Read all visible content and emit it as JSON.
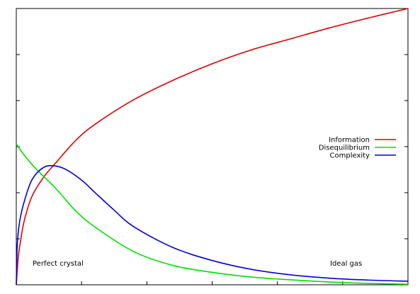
{
  "chart_data": {
    "type": "line",
    "title": "",
    "xlabel": "",
    "ylabel": "",
    "xlim": [
      0,
      1
    ],
    "ylim": [
      0,
      1
    ],
    "tick_labels": false,
    "grid": false,
    "legend_position": "center-right",
    "series": [
      {
        "name": "Information",
        "color": "#e00000",
        "x": [
          0,
          0.005,
          0.01,
          0.02,
          0.04,
          0.07,
          0.1,
          0.15,
          0.2,
          0.3,
          0.4,
          0.5,
          0.6,
          0.7,
          0.8,
          0.9,
          1.0
        ],
        "values": [
          0,
          0.1,
          0.15,
          0.23,
          0.32,
          0.39,
          0.44,
          0.52,
          0.58,
          0.67,
          0.74,
          0.8,
          0.85,
          0.89,
          0.93,
          0.966,
          1.0
        ]
      },
      {
        "name": "Disequilibrium",
        "color": "#00e000",
        "x": [
          0,
          0.02,
          0.05,
          0.1,
          0.15,
          0.2,
          0.3,
          0.4,
          0.5,
          0.6,
          0.7,
          0.8,
          0.9,
          1.0
        ],
        "values": [
          0.51,
          0.47,
          0.42,
          0.35,
          0.27,
          0.21,
          0.12,
          0.07,
          0.045,
          0.028,
          0.018,
          0.01,
          0.005,
          0.002
        ]
      },
      {
        "name": "Complexity",
        "color": "#0000e0",
        "x": [
          0,
          0.002,
          0.005,
          0.01,
          0.02,
          0.04,
          0.07,
          0.1,
          0.13,
          0.17,
          0.2,
          0.25,
          0.3,
          0.4,
          0.5,
          0.6,
          0.7,
          0.8,
          0.9,
          1.0
        ],
        "values": [
          0,
          0.13,
          0.19,
          0.24,
          0.3,
          0.38,
          0.425,
          0.43,
          0.415,
          0.375,
          0.335,
          0.27,
          0.21,
          0.135,
          0.088,
          0.056,
          0.036,
          0.024,
          0.017,
          0.013
        ]
      }
    ],
    "annotations": [
      {
        "text": "Perfect crystal"
      },
      {
        "text": "Ideal gas"
      }
    ]
  }
}
